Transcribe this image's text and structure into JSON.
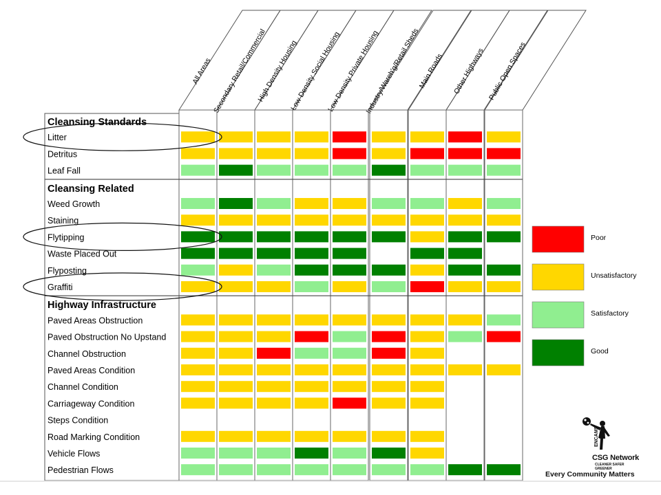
{
  "chart_data": {
    "type": "heatmap",
    "columns": [
      "All Areas",
      "Secondary Retail/Commercial",
      "High Density Housing",
      "Low Density Social Housing",
      "Low Density Private Housing",
      "Industry/Wareh'g/Retail Sheds",
      "Main Roads",
      "Other Highways",
      "Public Open Spaces"
    ],
    "legend": [
      {
        "key": "P",
        "label": "Poor",
        "color": "#ff0000"
      },
      {
        "key": "U",
        "label": "Unsatisfactory",
        "color": "#ffd700"
      },
      {
        "key": "S",
        "label": "Satisfactory",
        "color": "#90ee90"
      },
      {
        "key": "G",
        "label": "Good",
        "color": "#008000"
      }
    ],
    "sections": [
      {
        "title": "Cleansing Standards",
        "rows": [
          {
            "label": "Litter",
            "values": [
              "U",
              "U",
              "U",
              "U",
              "P",
              "U",
              "U",
              "P",
              "U"
            ],
            "circled": true
          },
          {
            "label": "Detritus",
            "values": [
              "U",
              "U",
              "U",
              "U",
              "P",
              "U",
              "P",
              "P",
              "P"
            ]
          },
          {
            "label": "Leaf Fall",
            "values": [
              "S",
              "G",
              "S",
              "S",
              "S",
              "G",
              "S",
              "S",
              "S"
            ]
          }
        ]
      },
      {
        "title": "Cleansing Related",
        "rows": [
          {
            "label": "Weed Growth",
            "values": [
              "S",
              "G",
              "S",
              "U",
              "U",
              "S",
              "S",
              "U",
              "S"
            ]
          },
          {
            "label": "Staining",
            "values": [
              "U",
              "U",
              "U",
              "U",
              "U",
              "U",
              "U",
              "U",
              "U"
            ]
          },
          {
            "label": "Flytipping",
            "values": [
              "G",
              "G",
              "G",
              "G",
              "G",
              "G",
              "U",
              "G",
              "G"
            ],
            "circled": true
          },
          {
            "label": "Waste Placed Out",
            "values": [
              "G",
              "G",
              "G",
              "G",
              "G",
              "",
              "G",
              "G",
              ""
            ]
          },
          {
            "label": "Flyposting",
            "values": [
              "S",
              "U",
              "S",
              "G",
              "G",
              "G",
              "U",
              "G",
              "G"
            ]
          },
          {
            "label": "Graffiti",
            "values": [
              "U",
              "U",
              "U",
              "S",
              "U",
              "S",
              "P",
              "U",
              "U"
            ],
            "circled": true
          }
        ]
      },
      {
        "title": "Highway Infrastructure",
        "rows": [
          {
            "label": "Paved Areas Obstruction",
            "values": [
              "U",
              "U",
              "U",
              "U",
              "U",
              "U",
              "U",
              "U",
              "S"
            ]
          },
          {
            "label": "Paved Obstruction No Upstand",
            "values": [
              "U",
              "U",
              "U",
              "P",
              "S",
              "P",
              "U",
              "S",
              "P"
            ]
          },
          {
            "label": "Channel Obstruction",
            "values": [
              "U",
              "U",
              "P",
              "S",
              "S",
              "P",
              "U",
              "",
              ""
            ]
          },
          {
            "label": "Paved Areas Condition",
            "values": [
              "U",
              "U",
              "U",
              "U",
              "U",
              "U",
              "U",
              "U",
              "U"
            ]
          },
          {
            "label": "Channel Condition",
            "values": [
              "U",
              "U",
              "U",
              "U",
              "U",
              "U",
              "U",
              "",
              ""
            ]
          },
          {
            "label": "Carriageway Condition",
            "values": [
              "U",
              "U",
              "U",
              "U",
              "P",
              "U",
              "U",
              "",
              ""
            ]
          },
          {
            "label": "Steps Condition",
            "values": [
              "",
              "",
              "",
              "",
              "",
              "",
              "",
              "",
              ""
            ]
          },
          {
            "label": "Road Marking Condition",
            "values": [
              "U",
              "U",
              "U",
              "U",
              "U",
              "U",
              "U",
              "",
              ""
            ]
          },
          {
            "label": "Vehicle Flows",
            "values": [
              "S",
              "S",
              "S",
              "G",
              "S",
              "G",
              "U",
              "",
              ""
            ]
          },
          {
            "label": "Pedestrian Flows",
            "values": [
              "S",
              "S",
              "S",
              "S",
              "S",
              "S",
              "S",
              "G",
              "G"
            ]
          }
        ]
      }
    ]
  },
  "logo": {
    "organisation": "CSG Network",
    "motto": "CLEANER SAFER GREENER",
    "brand": "ENCAMS",
    "tagline": "Every Community Matters"
  }
}
